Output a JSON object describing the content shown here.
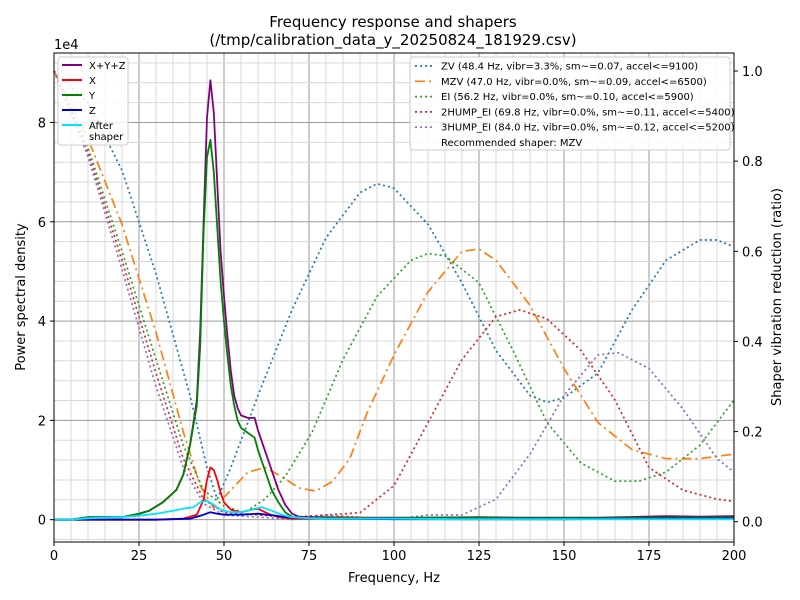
{
  "chart_data": {
    "type": "line",
    "title": [
      "Frequency response and shapers",
      "(/tmp/calibration_data_y_20250824_181929.csv)"
    ],
    "xlabel": "Frequency, Hz",
    "ylabel_left": "Power spectral density",
    "ylabel_right": "Shaper vibration reduction (ratio)",
    "left_scale_label": "1e4",
    "xlim": [
      0,
      200
    ],
    "ylim_left": [
      -0.45,
      9.4
    ],
    "ylim_right": [
      -0.045,
      1.04
    ],
    "x_ticks": [
      0,
      25,
      50,
      75,
      100,
      125,
      150,
      175,
      200
    ],
    "x_minor_step": 5,
    "y_left_ticks": [
      0,
      2,
      4,
      6,
      8
    ],
    "y_left_minor_step": 0.4,
    "y_right_ticks": [
      0.0,
      0.2,
      0.4,
      0.6,
      0.8,
      1.0
    ],
    "grid": true,
    "psd_series": [
      {
        "name": "X+Y+Z",
        "color": "#800080",
        "points": [
          [
            0,
            0
          ],
          [
            5,
            0
          ],
          [
            10,
            0.05
          ],
          [
            15,
            0.05
          ],
          [
            20,
            0.05
          ],
          [
            25,
            0.12
          ],
          [
            28,
            0.18
          ],
          [
            32,
            0.35
          ],
          [
            36,
            0.6
          ],
          [
            38,
            0.9
          ],
          [
            40,
            1.5
          ],
          [
            42,
            2.4
          ],
          [
            43,
            3.8
          ],
          [
            44,
            6.0
          ],
          [
            45,
            8.1
          ],
          [
            46,
            8.85
          ],
          [
            47,
            8.2
          ],
          [
            48,
            6.8
          ],
          [
            49,
            5.4
          ],
          [
            50,
            4.5
          ],
          [
            51,
            3.7
          ],
          [
            52,
            3.0
          ],
          [
            53,
            2.5
          ],
          [
            54,
            2.25
          ],
          [
            55,
            2.1
          ],
          [
            57,
            2.05
          ],
          [
            59,
            2.05
          ],
          [
            60,
            1.8
          ],
          [
            62,
            1.4
          ],
          [
            64,
            1.0
          ],
          [
            66,
            0.6
          ],
          [
            68,
            0.3
          ],
          [
            70,
            0.12
          ],
          [
            72,
            0.06
          ],
          [
            75,
            0.05
          ],
          [
            80,
            0.05
          ],
          [
            90,
            0.04
          ],
          [
            100,
            0.04
          ],
          [
            110,
            0.04
          ],
          [
            125,
            0.05
          ],
          [
            140,
            0.04
          ],
          [
            160,
            0.04
          ],
          [
            180,
            0.07
          ],
          [
            190,
            0.06
          ],
          [
            200,
            0.07
          ]
        ]
      },
      {
        "name": "X",
        "color": "#ff0000",
        "points": [
          [
            0,
            0
          ],
          [
            20,
            0
          ],
          [
            30,
            0
          ],
          [
            38,
            0.02
          ],
          [
            42,
            0.1
          ],
          [
            44,
            0.4
          ],
          [
            45,
            0.8
          ],
          [
            46,
            1.05
          ],
          [
            47,
            1.0
          ],
          [
            48,
            0.8
          ],
          [
            49,
            0.55
          ],
          [
            50,
            0.35
          ],
          [
            52,
            0.2
          ],
          [
            55,
            0.15
          ],
          [
            58,
            0.2
          ],
          [
            60,
            0.22
          ],
          [
            63,
            0.12
          ],
          [
            66,
            0.05
          ],
          [
            70,
            0.02
          ],
          [
            75,
            0.02
          ],
          [
            80,
            0.03
          ],
          [
            84,
            0.05
          ],
          [
            88,
            0.04
          ],
          [
            100,
            0.02
          ],
          [
            120,
            0.01
          ],
          [
            150,
            0.01
          ],
          [
            180,
            0.02
          ],
          [
            200,
            0.02
          ]
        ]
      },
      {
        "name": "Y",
        "color": "#008000",
        "points": [
          [
            0,
            0
          ],
          [
            5,
            0
          ],
          [
            10,
            0.05
          ],
          [
            15,
            0.05
          ],
          [
            20,
            0.05
          ],
          [
            25,
            0.12
          ],
          [
            28,
            0.18
          ],
          [
            32,
            0.35
          ],
          [
            36,
            0.6
          ],
          [
            38,
            0.9
          ],
          [
            40,
            1.5
          ],
          [
            42,
            2.3
          ],
          [
            43,
            3.5
          ],
          [
            44,
            5.8
          ],
          [
            45,
            7.3
          ],
          [
            46,
            7.65
          ],
          [
            47,
            7.0
          ],
          [
            48,
            5.9
          ],
          [
            49,
            4.8
          ],
          [
            50,
            4.0
          ],
          [
            51,
            3.3
          ],
          [
            52,
            2.7
          ],
          [
            53,
            2.3
          ],
          [
            54,
            2.0
          ],
          [
            55,
            1.85
          ],
          [
            57,
            1.75
          ],
          [
            59,
            1.65
          ],
          [
            60,
            1.4
          ],
          [
            62,
            1.0
          ],
          [
            64,
            0.6
          ],
          [
            66,
            0.35
          ],
          [
            68,
            0.15
          ],
          [
            70,
            0.06
          ],
          [
            72,
            0.03
          ],
          [
            75,
            0.03
          ],
          [
            80,
            0.04
          ],
          [
            90,
            0.03
          ],
          [
            100,
            0.03
          ],
          [
            110,
            0.04
          ],
          [
            125,
            0.04
          ],
          [
            140,
            0.03
          ],
          [
            160,
            0.03
          ],
          [
            180,
            0.04
          ],
          [
            200,
            0.04
          ]
        ]
      },
      {
        "name": "Z",
        "color": "#0000cd",
        "points": [
          [
            0,
            0
          ],
          [
            30,
            0
          ],
          [
            40,
            0.02
          ],
          [
            44,
            0.1
          ],
          [
            46,
            0.15
          ],
          [
            48,
            0.12
          ],
          [
            50,
            0.1
          ],
          [
            55,
            0.1
          ],
          [
            60,
            0.12
          ],
          [
            65,
            0.08
          ],
          [
            70,
            0.04
          ],
          [
            80,
            0.02
          ],
          [
            100,
            0.01
          ],
          [
            125,
            0.01
          ],
          [
            150,
            0.01
          ],
          [
            180,
            0.02
          ],
          [
            200,
            0.02
          ]
        ]
      },
      {
        "name": "After\nshaper",
        "color": "#00e5ff",
        "points": [
          [
            0,
            0
          ],
          [
            5,
            0
          ],
          [
            10,
            0.03
          ],
          [
            15,
            0.04
          ],
          [
            20,
            0.05
          ],
          [
            25,
            0.08
          ],
          [
            30,
            0.12
          ],
          [
            35,
            0.18
          ],
          [
            38,
            0.22
          ],
          [
            41,
            0.25
          ],
          [
            43,
            0.35
          ],
          [
            45,
            0.38
          ],
          [
            47,
            0.3
          ],
          [
            49,
            0.2
          ],
          [
            52,
            0.15
          ],
          [
            55,
            0.15
          ],
          [
            58,
            0.2
          ],
          [
            61,
            0.25
          ],
          [
            64,
            0.18
          ],
          [
            67,
            0.1
          ],
          [
            70,
            0.05
          ],
          [
            75,
            0.03
          ],
          [
            80,
            0.02
          ],
          [
            90,
            0.02
          ],
          [
            100,
            0.02
          ],
          [
            120,
            0.01
          ],
          [
            150,
            0.01
          ],
          [
            180,
            0.01
          ],
          [
            200,
            0.01
          ]
        ]
      }
    ],
    "shaper_series": [
      {
        "name": "ZV (48.4 Hz, vibr=3.3%, sm~=0.07, accel<=9100)",
        "color": "#1f77b4",
        "dash": "2,3",
        "points": [
          [
            0,
            1.0
          ],
          [
            10,
            0.93
          ],
          [
            20,
            0.78
          ],
          [
            30,
            0.55
          ],
          [
            40,
            0.28
          ],
          [
            45,
            0.12
          ],
          [
            48,
            0.05
          ],
          [
            52,
            0.12
          ],
          [
            60,
            0.28
          ],
          [
            70,
            0.47
          ],
          [
            80,
            0.63
          ],
          [
            90,
            0.73
          ],
          [
            95,
            0.75
          ],
          [
            100,
            0.74
          ],
          [
            110,
            0.66
          ],
          [
            120,
            0.53
          ],
          [
            130,
            0.38
          ],
          [
            140,
            0.28
          ],
          [
            145,
            0.265
          ],
          [
            150,
            0.275
          ],
          [
            160,
            0.33
          ],
          [
            170,
            0.47
          ],
          [
            180,
            0.58
          ],
          [
            190,
            0.625
          ],
          [
            195,
            0.625
          ],
          [
            200,
            0.61
          ]
        ]
      },
      {
        "name": "MZV (47.0 Hz, vibr=0.0%, sm~=0.09, accel<=6500)",
        "color": "#ff7f0e",
        "dash": "10,4,2,4",
        "points": [
          [
            0,
            1.0
          ],
          [
            10,
            0.85
          ],
          [
            20,
            0.66
          ],
          [
            30,
            0.42
          ],
          [
            38,
            0.2
          ],
          [
            43,
            0.08
          ],
          [
            47,
            0.03
          ],
          [
            52,
            0.07
          ],
          [
            57,
            0.11
          ],
          [
            62,
            0.12
          ],
          [
            67,
            0.1
          ],
          [
            72,
            0.075
          ],
          [
            77,
            0.068
          ],
          [
            82,
            0.09
          ],
          [
            87,
            0.14
          ],
          [
            92,
            0.24
          ],
          [
            100,
            0.37
          ],
          [
            110,
            0.51
          ],
          [
            120,
            0.6
          ],
          [
            125,
            0.605
          ],
          [
            130,
            0.58
          ],
          [
            140,
            0.48
          ],
          [
            150,
            0.34
          ],
          [
            160,
            0.22
          ],
          [
            170,
            0.16
          ],
          [
            180,
            0.14
          ],
          [
            190,
            0.14
          ],
          [
            200,
            0.15
          ]
        ]
      },
      {
        "name": "EI (56.2 Hz, vibr=0.0%, sm~=0.10, accel<=5900)",
        "color": "#2ca02c",
        "dash": "2,3",
        "points": [
          [
            0,
            1.0
          ],
          [
            10,
            0.83
          ],
          [
            20,
            0.6
          ],
          [
            30,
            0.36
          ],
          [
            38,
            0.17
          ],
          [
            44,
            0.07
          ],
          [
            50,
            0.035
          ],
          [
            56,
            0.02
          ],
          [
            62,
            0.05
          ],
          [
            68,
            0.1
          ],
          [
            76,
            0.2
          ],
          [
            85,
            0.36
          ],
          [
            95,
            0.5
          ],
          [
            105,
            0.58
          ],
          [
            110,
            0.595
          ],
          [
            115,
            0.59
          ],
          [
            125,
            0.53
          ],
          [
            135,
            0.38
          ],
          [
            145,
            0.22
          ],
          [
            155,
            0.13
          ],
          [
            165,
            0.09
          ],
          [
            172,
            0.09
          ],
          [
            180,
            0.11
          ],
          [
            190,
            0.17
          ],
          [
            200,
            0.27
          ]
        ]
      },
      {
        "name": "2HUMP_EI (69.8 Hz, vibr=0.0%, sm~=0.11, accel<=5400)",
        "color": "#d62728",
        "dash": "2,3",
        "points": [
          [
            0,
            1.0
          ],
          [
            10,
            0.82
          ],
          [
            20,
            0.58
          ],
          [
            30,
            0.33
          ],
          [
            38,
            0.14
          ],
          [
            44,
            0.05
          ],
          [
            50,
            0.02
          ],
          [
            60,
            0.015
          ],
          [
            70,
            0.01
          ],
          [
            80,
            0.015
          ],
          [
            90,
            0.02
          ],
          [
            100,
            0.08
          ],
          [
            110,
            0.22
          ],
          [
            120,
            0.36
          ],
          [
            130,
            0.455
          ],
          [
            137,
            0.47
          ],
          [
            145,
            0.45
          ],
          [
            155,
            0.38
          ],
          [
            165,
            0.27
          ],
          [
            175,
            0.12
          ],
          [
            185,
            0.07
          ],
          [
            195,
            0.05
          ],
          [
            200,
            0.045
          ]
        ]
      },
      {
        "name": "3HUMP_EI (84.0 Hz, vibr=0.0%, sm~=0.12, accel<=5200)",
        "color": "#9467bd",
        "dash": "2,3",
        "points": [
          [
            0,
            1.0
          ],
          [
            10,
            0.81
          ],
          [
            20,
            0.56
          ],
          [
            30,
            0.3
          ],
          [
            38,
            0.12
          ],
          [
            44,
            0.04
          ],
          [
            50,
            0.015
          ],
          [
            60,
            0.01
          ],
          [
            70,
            0.005
          ],
          [
            80,
            0.015
          ],
          [
            90,
            0.01
          ],
          [
            100,
            0.005
          ],
          [
            110,
            0.015
          ],
          [
            120,
            0.015
          ],
          [
            130,
            0.05
          ],
          [
            140,
            0.15
          ],
          [
            150,
            0.28
          ],
          [
            160,
            0.37
          ],
          [
            166,
            0.375
          ],
          [
            175,
            0.34
          ],
          [
            185,
            0.25
          ],
          [
            195,
            0.14
          ],
          [
            200,
            0.11
          ]
        ]
      }
    ],
    "legend_left": [
      "X+Y+Z",
      "X",
      "Y",
      "Z",
      "After\nshaper"
    ],
    "legend_right": [
      "ZV (48.4 Hz, vibr=3.3%, sm~=0.07, accel<=9100)",
      "MZV (47.0 Hz, vibr=0.0%, sm~=0.09, accel<=6500)",
      "EI (56.2 Hz, vibr=0.0%, sm~=0.10, accel<=5900)",
      "2HUMP_EI (69.8 Hz, vibr=0.0%, sm~=0.11, accel<=5400)",
      "3HUMP_EI (84.0 Hz, vibr=0.0%, sm~=0.12, accel<=5200)",
      "Recommended shaper: MZV"
    ],
    "recommended": "Recommended shaper: MZV"
  }
}
